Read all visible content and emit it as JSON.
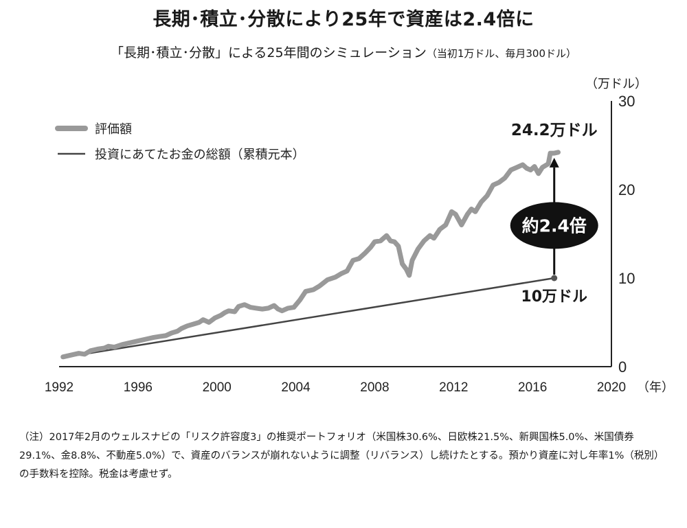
{
  "title": "長期･積立･分散により25年で資産は2.4倍に",
  "subtitle_main": "「長期･積立･分散」による25年間のシミュレーション",
  "subtitle_small": "（当初1万ドル、毎月300ドル）",
  "note": "（注）2017年2月のウェルスナビの「リスク許容度3」の推奨ポートフォリオ（米国株30.6%、日欧株21.5%、新興国株5.0%、米国債券29.1%、金8.8%、不動産5.0%）で、資産のバランスが崩れないように調整（リバランス）し続けたとする。預かり資産に対し年率1%（税別）の手数料を控除。税金は考慮せず。",
  "chart_data": {
    "type": "line",
    "yunit": "（万ドル）",
    "xunit": "（年）",
    "xlim": [
      1992,
      2020
    ],
    "ylim": [
      0,
      30
    ],
    "xticks": [
      "1992",
      "1996",
      "2000",
      "2004",
      "2008",
      "2012",
      "2016",
      "2020"
    ],
    "yticks": [
      "0",
      "10",
      "20",
      "30"
    ],
    "grid": false,
    "legend": "top-left",
    "legend_items": [
      "評価額",
      "投資にあてたお金の総額（累積元本）"
    ],
    "series": [
      {
        "name": "評価額",
        "color": "#999999",
        "x": [
          1992.2,
          1992.6,
          1993.0,
          1993.3,
          1993.6,
          1994.0,
          1994.3,
          1994.5,
          1994.8,
          1995.2,
          1995.6,
          1996.0,
          1996.4,
          1996.8,
          1997.1,
          1997.4,
          1997.7,
          1998.0,
          1998.2,
          1998.5,
          1998.8,
          1999.1,
          1999.3,
          1999.6,
          1999.9,
          2000.2,
          2000.4,
          2000.6,
          2000.9,
          2001.1,
          2001.4,
          2001.7,
          2002.0,
          2002.3,
          2002.6,
          2002.9,
          2003.1,
          2003.3,
          2003.6,
          2003.9,
          2004.2,
          2004.5,
          2004.9,
          2005.2,
          2005.6,
          2006.0,
          2006.3,
          2006.6,
          2006.9,
          2007.2,
          2007.5,
          2007.8,
          2008.0,
          2008.3,
          2008.6,
          2008.8,
          2009.0,
          2009.2,
          2009.4,
          2009.6,
          2009.75,
          2009.9,
          2010.2,
          2010.5,
          2010.8,
          2011.0,
          2011.3,
          2011.6,
          2011.9,
          2012.1,
          2012.4,
          2012.7,
          2012.9,
          2013.1,
          2013.4,
          2013.7,
          2014.0,
          2014.3,
          2014.6,
          2014.9,
          2015.2,
          2015.5,
          2015.7,
          2015.9,
          2016.1,
          2016.3,
          2016.5,
          2016.8,
          2016.9,
          2017.1,
          2017.3
        ],
        "values": [
          1.1,
          1.3,
          1.5,
          1.4,
          1.8,
          2.0,
          2.1,
          2.3,
          2.2,
          2.5,
          2.7,
          2.9,
          3.1,
          3.3,
          3.4,
          3.5,
          3.8,
          4.0,
          4.3,
          4.6,
          4.8,
          5.0,
          5.3,
          5.0,
          5.5,
          5.8,
          6.1,
          6.3,
          6.2,
          6.8,
          7.0,
          6.7,
          6.6,
          6.5,
          6.6,
          6.9,
          6.5,
          6.3,
          6.6,
          6.7,
          7.5,
          8.5,
          8.7,
          9.1,
          9.8,
          10.1,
          10.5,
          10.8,
          12.0,
          12.2,
          12.8,
          13.5,
          14.1,
          14.2,
          14.8,
          14.2,
          14.1,
          13.6,
          11.6,
          11.0,
          10.3,
          12.0,
          13.3,
          14.2,
          14.8,
          14.5,
          15.5,
          16.0,
          17.5,
          17.2,
          16.0,
          17.2,
          17.8,
          17.5,
          18.6,
          19.3,
          20.5,
          20.8,
          21.3,
          22.2,
          22.5,
          22.8,
          22.4,
          22.2,
          22.6,
          21.8,
          22.5,
          22.9,
          24.1,
          24.1,
          24.2
        ]
      },
      {
        "name": "投資にあてたお金の総額（累積元本）",
        "color": "#444444",
        "x": [
          1992.1,
          2017.1
        ],
        "values": [
          1.0,
          10.0
        ]
      }
    ],
    "annotations": {
      "end_value_label": "24.2万ドル",
      "principal_label": "10万ドル",
      "multiplier_label": "約2.4倍"
    }
  }
}
